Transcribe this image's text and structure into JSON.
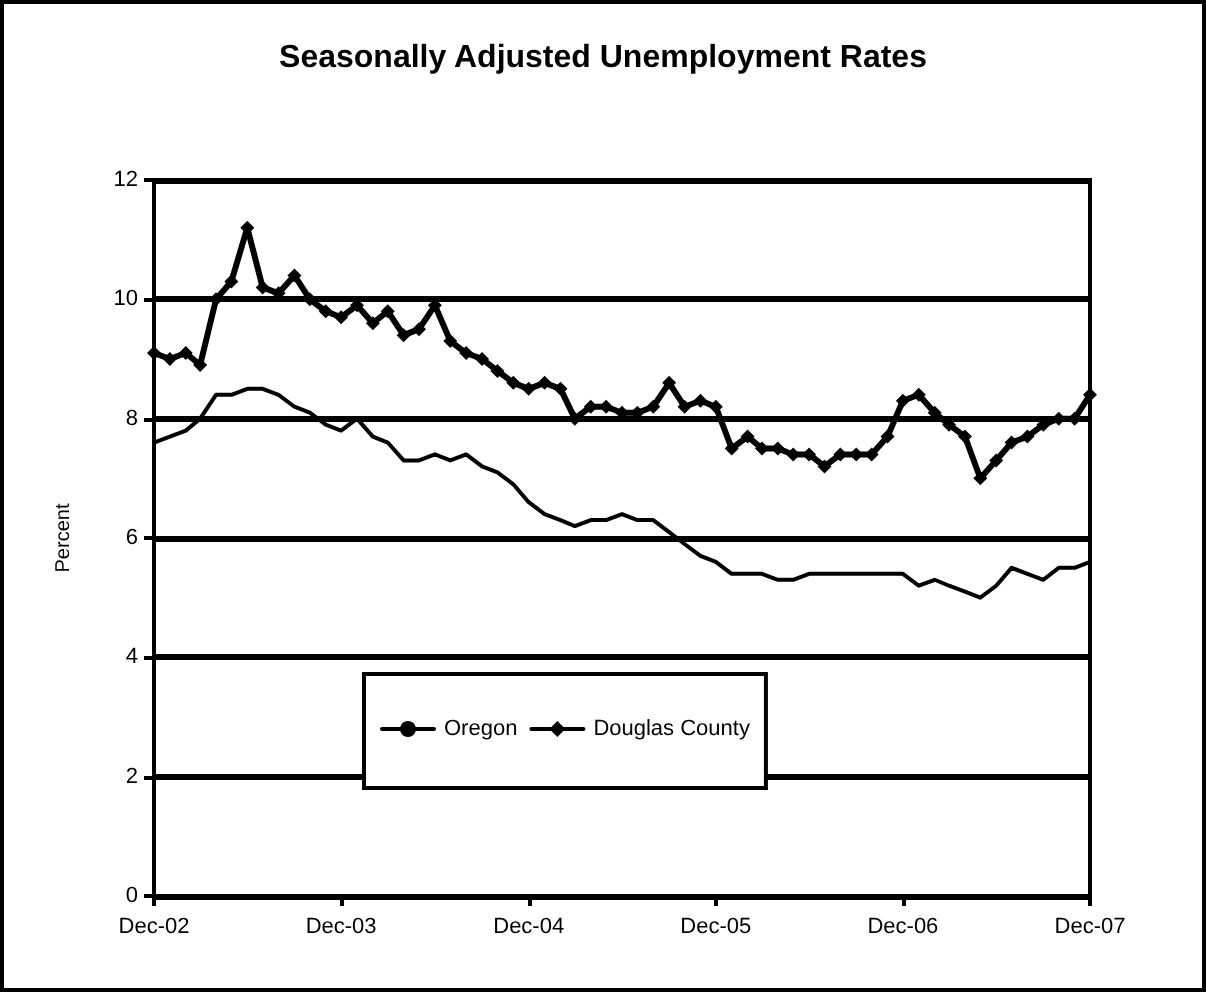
{
  "chart_data": {
    "type": "line",
    "title": "Seasonally Adjusted Unemployment Rates",
    "ylabel": "Percent",
    "x": [
      "2002-12",
      "2003-01",
      "2003-02",
      "2003-03",
      "2003-04",
      "2003-05",
      "2003-06",
      "2003-07",
      "2003-08",
      "2003-09",
      "2003-10",
      "2003-11",
      "2003-12",
      "2004-01",
      "2004-02",
      "2004-03",
      "2004-04",
      "2004-05",
      "2004-06",
      "2004-07",
      "2004-08",
      "2004-09",
      "2004-10",
      "2004-11",
      "2004-12",
      "2005-01",
      "2005-02",
      "2005-03",
      "2005-04",
      "2005-05",
      "2005-06",
      "2005-07",
      "2005-08",
      "2005-09",
      "2005-10",
      "2005-11",
      "2005-12",
      "2006-01",
      "2006-02",
      "2006-03",
      "2006-04",
      "2006-05",
      "2006-06",
      "2006-07",
      "2006-08",
      "2006-09",
      "2006-10",
      "2006-11",
      "2006-12",
      "2007-01",
      "2007-02",
      "2007-03",
      "2007-04",
      "2007-05",
      "2007-06",
      "2007-07",
      "2007-08",
      "2007-09",
      "2007-10",
      "2007-11",
      "2007-12"
    ],
    "series": [
      {
        "name": "Oregon",
        "color": "#000000",
        "marker": "none",
        "values": [
          7.6,
          7.7,
          7.8,
          8.0,
          8.4,
          8.4,
          8.5,
          8.5,
          8.4,
          8.2,
          8.1,
          7.9,
          7.8,
          8.0,
          7.7,
          7.6,
          7.3,
          7.3,
          7.4,
          7.3,
          7.4,
          7.2,
          7.1,
          6.9,
          6.6,
          6.4,
          6.3,
          6.2,
          6.3,
          6.3,
          6.4,
          6.3,
          6.3,
          6.1,
          5.9,
          5.7,
          5.6,
          5.4,
          5.4,
          5.4,
          5.3,
          5.3,
          5.4,
          5.4,
          5.4,
          5.4,
          5.4,
          5.4,
          5.4,
          5.2,
          5.3,
          5.2,
          5.1,
          5.0,
          5.2,
          5.5,
          5.4,
          5.3,
          5.5,
          5.5,
          5.6
        ]
      },
      {
        "name": "Douglas County",
        "color": "#000000",
        "marker": "diamond",
        "values": [
          9.1,
          9.0,
          9.1,
          8.9,
          10.0,
          10.3,
          11.2,
          10.2,
          10.1,
          10.4,
          10.0,
          9.8,
          9.7,
          9.9,
          9.6,
          9.8,
          9.4,
          9.5,
          9.9,
          9.3,
          9.1,
          9.0,
          8.8,
          8.6,
          8.5,
          8.6,
          8.5,
          8.0,
          8.2,
          8.2,
          8.1,
          8.1,
          8.2,
          8.6,
          8.2,
          8.3,
          8.2,
          7.5,
          7.7,
          7.5,
          7.5,
          7.4,
          7.4,
          7.2,
          7.4,
          7.4,
          7.4,
          7.7,
          8.3,
          8.4,
          8.1,
          7.9,
          7.7,
          7.0,
          7.3,
          7.6,
          7.7,
          7.9,
          8.0,
          8.0,
          8.4
        ]
      }
    ],
    "ylim": [
      0,
      12
    ],
    "yticks": [
      0,
      2,
      4,
      6,
      8,
      10,
      12
    ],
    "xlim": [
      "2002-12",
      "2007-12"
    ],
    "xticks": [
      {
        "value": "2002-12",
        "label": "Dec-02"
      },
      {
        "value": "2003-12",
        "label": "Dec-03"
      },
      {
        "value": "2004-12",
        "label": "Dec-04"
      },
      {
        "value": "2005-12",
        "label": "Dec-05"
      },
      {
        "value": "2006-12",
        "label": "Dec-06"
      },
      {
        "value": "2007-12",
        "label": "Dec-07"
      }
    ],
    "grid": "y",
    "legend": "bottom",
    "line_style": "solid"
  }
}
